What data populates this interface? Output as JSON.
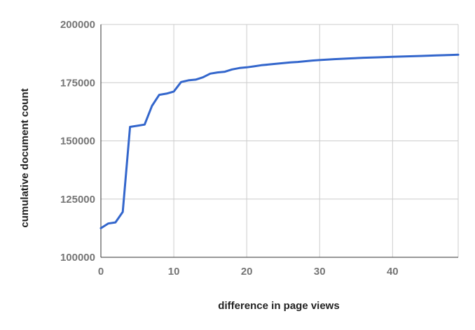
{
  "chart_data": {
    "type": "line",
    "title": "",
    "xlabel": "difference in page views",
    "ylabel": "cumulative document count",
    "xlim": [
      0,
      49
    ],
    "ylim": [
      100000,
      200000
    ],
    "x_ticks": [
      0,
      10,
      20,
      30,
      40
    ],
    "y_ticks": [
      100000,
      125000,
      150000,
      175000,
      200000
    ],
    "grid": true,
    "legend": "none",
    "series": [
      {
        "color": "#3366cc",
        "x": [
          0,
          1,
          2,
          3,
          4,
          5,
          6,
          7,
          8,
          9,
          10,
          11,
          12,
          13,
          14,
          15,
          16,
          17,
          18,
          19,
          20,
          21,
          22,
          23,
          24,
          25,
          26,
          27,
          28,
          29,
          30,
          32,
          34,
          36,
          38,
          40,
          42,
          44,
          46,
          48,
          49
        ],
        "y": [
          112500,
          114500,
          115000,
          119500,
          156000,
          156500,
          157000,
          165000,
          169800,
          170300,
          171200,
          175300,
          176000,
          176300,
          177300,
          178900,
          179400,
          179700,
          180700,
          181300,
          181600,
          182000,
          182500,
          182800,
          183100,
          183400,
          183700,
          183900,
          184200,
          184500,
          184700,
          185100,
          185400,
          185700,
          185900,
          186100,
          186300,
          186500,
          186700,
          186900,
          187000
        ]
      }
    ]
  }
}
